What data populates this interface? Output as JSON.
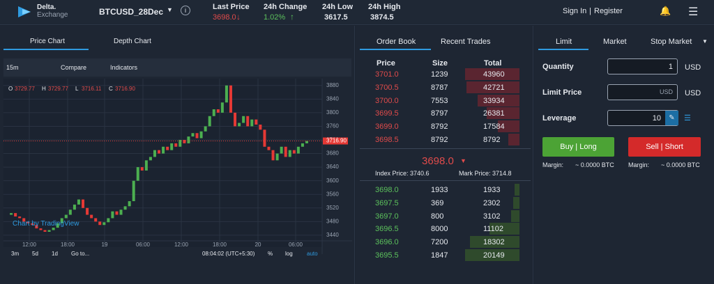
{
  "header": {
    "logo": [
      "Delta.",
      "Exchange"
    ],
    "symbol": "BTCUSD_28Dec",
    "stats": [
      {
        "label": "Last Price",
        "value": "3698.0"
      },
      {
        "label": "24h Change",
        "value": "1.02%"
      },
      {
        "label": "24h Low",
        "value": "3617.5"
      },
      {
        "label": "24h High",
        "value": "3874.5"
      }
    ],
    "sign_in": "Sign In",
    "separator": "|",
    "register": "Register"
  },
  "price_chart": {
    "tabs": [
      "Price Chart",
      "Depth Chart"
    ],
    "interval": "15m",
    "compare": "Compare",
    "indicators": "Indicators",
    "ohlc": [
      {
        "label": "O",
        "value": "3729.77"
      },
      {
        "label": "H",
        "value": "3729.77"
      },
      {
        "label": "L",
        "value": "3716.11"
      },
      {
        "label": "C",
        "value": "3716.90"
      }
    ],
    "watermark": "Chart by TradingView",
    "ylim": [
      3405,
      3900
    ],
    "yticks": [
      3880,
      3840,
      3800,
      3760,
      3720,
      3680,
      3640,
      3600,
      3560,
      3520,
      3480,
      3440
    ],
    "current_price": {
      "value": 3716.9,
      "label": "3716.90"
    },
    "time_labels": [
      "12:00",
      "18:00",
      "19",
      "06:00",
      "12:00",
      "18:00",
      "20",
      "06:00"
    ],
    "closes": [
      3500,
      3505,
      3495,
      3490,
      3480,
      3475,
      3470,
      3460,
      3455,
      3450,
      3455,
      3462,
      3475,
      3490,
      3500,
      3515,
      3530,
      3545,
      3520,
      3500,
      3490,
      3480,
      3470,
      3478,
      3490,
      3510,
      3500,
      3515,
      3525,
      3540,
      3600,
      3640,
      3630,
      3660,
      3670,
      3690,
      3680,
      3700,
      3690,
      3710,
      3700,
      3720,
      3710,
      3730,
      3740,
      3725,
      3745,
      3760,
      3790,
      3810,
      3800,
      3830,
      3880,
      3800,
      3760,
      3770,
      3790,
      3760,
      3780,
      3765,
      3750,
      3700,
      3690,
      3660,
      3680,
      3700,
      3670,
      3690,
      3680,
      3700,
      3710,
      3716.9
    ],
    "ranges": [
      "3m",
      "5d",
      "1d",
      "Go to..."
    ],
    "clock": "08:04:02 (UTC+5:30)",
    "percent": "%",
    "log": "log",
    "auto": "auto"
  },
  "order_book": {
    "tabs": [
      "Order Book",
      "Recent Trades"
    ],
    "columns": [
      "Price",
      "Size",
      "Total"
    ],
    "asks": [
      [
        "3701.0",
        1239,
        43960
      ],
      [
        "3700.5",
        8787,
        42721
      ],
      [
        "3700.0",
        7553,
        33934
      ],
      [
        "3699.5",
        8797,
        26381
      ],
      [
        "3699.0",
        8792,
        17584
      ],
      [
        "3698.5",
        8792,
        8792
      ]
    ],
    "last_price": "3698.0",
    "index_price": "Index Price: 3740.6",
    "mark_price": "Mark Price: 3714.8",
    "bids": [
      [
        "3698.0",
        1933,
        1933
      ],
      [
        "3697.5",
        369,
        2302
      ],
      [
        "3697.0",
        800,
        3102
      ],
      [
        "3696.5",
        8000,
        11102
      ],
      [
        "3696.0",
        7200,
        18302
      ],
      [
        "3695.5",
        1847,
        20149
      ]
    ]
  },
  "order_form": {
    "tabs": [
      "Limit",
      "Market",
      "Stop Market"
    ],
    "fields": [
      {
        "label": "Quantity",
        "value": "1",
        "unit": "USD"
      },
      {
        "label": "Limit Price",
        "value": "USD",
        "unit": "USD"
      },
      {
        "label": "Leverage",
        "value": "10"
      }
    ],
    "buy": "Buy | Long",
    "sell": "Sell | Short",
    "margin_label": "Margin:",
    "margin_value": "~ 0.0000 BTC"
  }
}
